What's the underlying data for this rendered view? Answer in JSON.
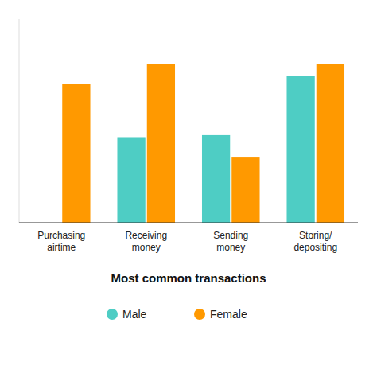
{
  "chart_data": {
    "type": "bar",
    "title": "Most common transactions",
    "categories": [
      "Purchasing\nairtime",
      "Receiving\nmoney",
      "Sending\nmoney",
      "Storing/\ndepositing"
    ],
    "series": [
      {
        "name": "Male",
        "color": "#4ECDC4",
        "values": [
          0,
          42,
          43,
          72
        ]
      },
      {
        "name": "Female",
        "color": "#FF9900",
        "values": [
          68,
          78,
          32,
          78
        ]
      }
    ],
    "ylim": [
      0,
      100
    ],
    "tick_labels": "x",
    "legend": "bottom"
  }
}
